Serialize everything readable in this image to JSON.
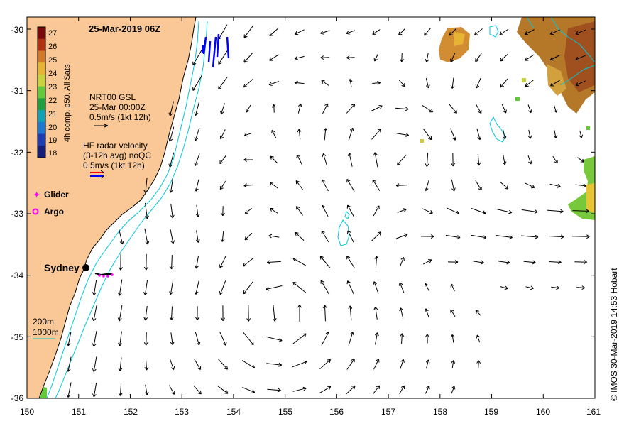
{
  "map": {
    "title": "25-Mar-2019 06Z",
    "credit": "© IMOS 30-Mar-2019 14:53 Hobart",
    "x_ticks": [
      "150",
      "151",
      "152",
      "153",
      "154",
      "155",
      "156",
      "157",
      "158",
      "159",
      "160",
      "161"
    ],
    "y_ticks": [
      "-30",
      "-31",
      "-32",
      "-33",
      "-34",
      "-35",
      "-36"
    ],
    "colors": {
      "land": "#f9c896",
      "isobath": "#00c8dc",
      "arrow": "#000000",
      "hf_red": "#ff0000",
      "hf_blue": "#0000ff",
      "glider": "#ff00ff",
      "argo": "#ff00ff"
    }
  },
  "colorbar": {
    "label": "4h comp, p50, All Sats",
    "ticks": [
      "27",
      "26",
      "25",
      "24",
      "23",
      "22",
      "21",
      "20",
      "19",
      "18"
    ],
    "colors": [
      "#7a0a0a",
      "#b03010",
      "#d27828",
      "#e6b432",
      "#c8d23c",
      "#64c83c",
      "#1e9e3c",
      "#14a0b4",
      "#1e78d2",
      "#1e3cb4",
      "#141e78"
    ]
  },
  "legend": {
    "gsl_line1": "NRT00 GSL",
    "gsl_line2": "25-Mar 00:00Z",
    "gsl_line3": "0.5m/s (1kt 12h)",
    "hf_line1": "HF radar velocity",
    "hf_line2": "(3-12h avg) noQC",
    "hf_line3": "0.5m/s (1kt 12h)",
    "glider_label": "Glider",
    "argo_label": "Argo",
    "isobath_200": "200m",
    "isobath_1000": "1000m"
  },
  "places": {
    "sydney": "Sydney"
  }
}
